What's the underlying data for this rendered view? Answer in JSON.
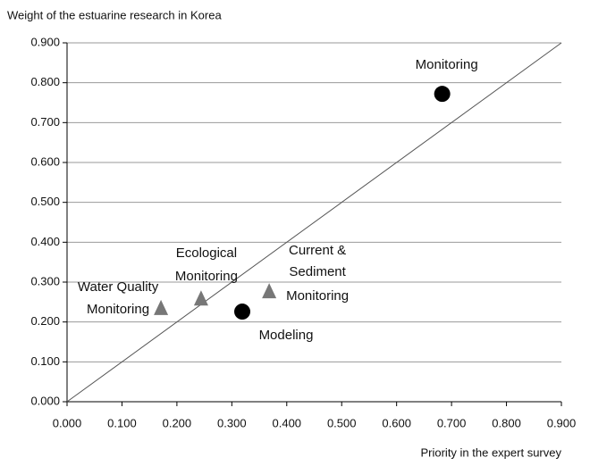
{
  "chart_data": {
    "type": "scatter",
    "y_label": "Weight of the estuarine research in Korea",
    "x_label": "Priority in the expert survey",
    "xlim": [
      0,
      0.9
    ],
    "ylim": [
      0,
      0.9
    ],
    "xticks": [
      {
        "value": 0,
        "label": "0.000"
      },
      {
        "value": 0.1,
        "label": "0.100"
      },
      {
        "value": 0.2,
        "label": "0.200"
      },
      {
        "value": 0.3,
        "label": "0.300"
      },
      {
        "value": 0.4,
        "label": "0.400"
      },
      {
        "value": 0.5,
        "label": "0.500"
      },
      {
        "value": 0.6,
        "label": "0.600"
      },
      {
        "value": 0.7,
        "label": "0.700"
      },
      {
        "value": 0.8,
        "label": "0.800"
      },
      {
        "value": 0.9,
        "label": "0.900"
      }
    ],
    "yticks": [
      {
        "value": 0,
        "label": "0.000"
      },
      {
        "value": 0.1,
        "label": "0.100"
      },
      {
        "value": 0.2,
        "label": "0.200"
      },
      {
        "value": 0.3,
        "label": "0.300"
      },
      {
        "value": 0.4,
        "label": "0.400"
      },
      {
        "value": 0.5,
        "label": "0.500"
      },
      {
        "value": 0.6,
        "label": "0.600"
      },
      {
        "value": 0.7,
        "label": "0.700"
      },
      {
        "value": 0.8,
        "label": "0.800"
      },
      {
        "value": 0.9,
        "label": "0.900"
      }
    ],
    "grid": true,
    "diagonal": true,
    "points": [
      {
        "x": 0.683,
        "y": 0.772,
        "label": [
          "Monitoring"
        ],
        "marker": "circle",
        "color": "#000000"
      },
      {
        "x": 0.319,
        "y": 0.226,
        "label": [
          "Modeling"
        ],
        "marker": "circle",
        "color": "#000000"
      },
      {
        "x": 0.171,
        "y": 0.233,
        "label": [
          "Water Quality",
          "Monitoring"
        ],
        "marker": "triangle",
        "color": "#777777"
      },
      {
        "x": 0.244,
        "y": 0.257,
        "label": [
          "Ecological",
          "Monitoring"
        ],
        "marker": "triangle",
        "color": "#777777"
      },
      {
        "x": 0.368,
        "y": 0.275,
        "label": [
          "Current &",
          "Sediment",
          "Monitoring"
        ],
        "marker": "triangle",
        "color": "#777777"
      }
    ]
  }
}
